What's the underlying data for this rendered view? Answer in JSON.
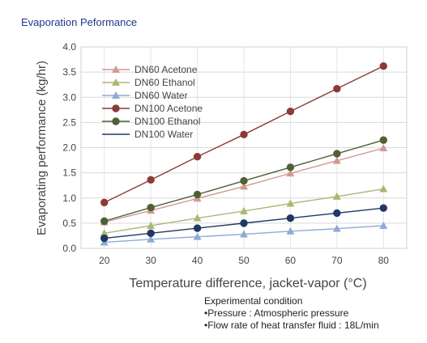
{
  "page": {
    "title": "Evaporation Peformance"
  },
  "conditions": {
    "heading": "Experimental condition",
    "lines": [
      "•Pressure : Atmospheric pressure",
      "•Flow rate of heat transfer fluid : 18L/min"
    ]
  },
  "chart_data": {
    "type": "line",
    "title": "Evaporation Peformance",
    "xlabel": "Temperature difference, jacket-vapor (°C)",
    "ylabel": "Evaporating performance (kg/hr)",
    "x": [
      20,
      30,
      40,
      50,
      60,
      70,
      80
    ],
    "xlim": [
      15,
      85
    ],
    "ylim": [
      0,
      4.0
    ],
    "yticks": [
      0.0,
      0.5,
      1.0,
      1.5,
      2.0,
      2.5,
      3.0,
      3.5,
      4.0
    ],
    "ytick_labels": [
      "0.0",
      "0.5",
      "1.0",
      "1.5",
      "2.0",
      "2.5",
      "3.0",
      "3.5",
      "4.0"
    ],
    "xtick_labels": [
      "20",
      "30",
      "40",
      "50",
      "60",
      "70",
      "80"
    ],
    "grid": true,
    "legend_position": "top-left",
    "series": [
      {
        "name": "DN60 Acetone",
        "marker": "triangle",
        "color": "#d09a90",
        "values": [
          0.52,
          0.75,
          0.99,
          1.23,
          1.49,
          1.74,
          1.99
        ]
      },
      {
        "name": "DN60 Ethanol",
        "marker": "triangle",
        "color": "#a9b872",
        "values": [
          0.3,
          0.45,
          0.6,
          0.74,
          0.89,
          1.03,
          1.18
        ]
      },
      {
        "name": "DN60 Water",
        "marker": "triangle",
        "color": "#8eabd4",
        "values": [
          0.12,
          0.18,
          0.23,
          0.28,
          0.34,
          0.39,
          0.45
        ]
      },
      {
        "name": "DN100 Acetone",
        "marker": "circle",
        "color": "#8b3a3a",
        "values": [
          0.91,
          1.36,
          1.82,
          2.26,
          2.72,
          3.17,
          3.62
        ]
      },
      {
        "name": "DN100 Ethanol",
        "marker": "circle",
        "color": "#4e6035",
        "values": [
          0.54,
          0.81,
          1.07,
          1.34,
          1.61,
          1.88,
          2.15
        ]
      },
      {
        "name": "DN100 Water",
        "marker": "circle",
        "color": "#1f3864",
        "values": [
          0.2,
          0.3,
          0.4,
          0.5,
          0.6,
          0.7,
          0.8
        ]
      }
    ]
  }
}
